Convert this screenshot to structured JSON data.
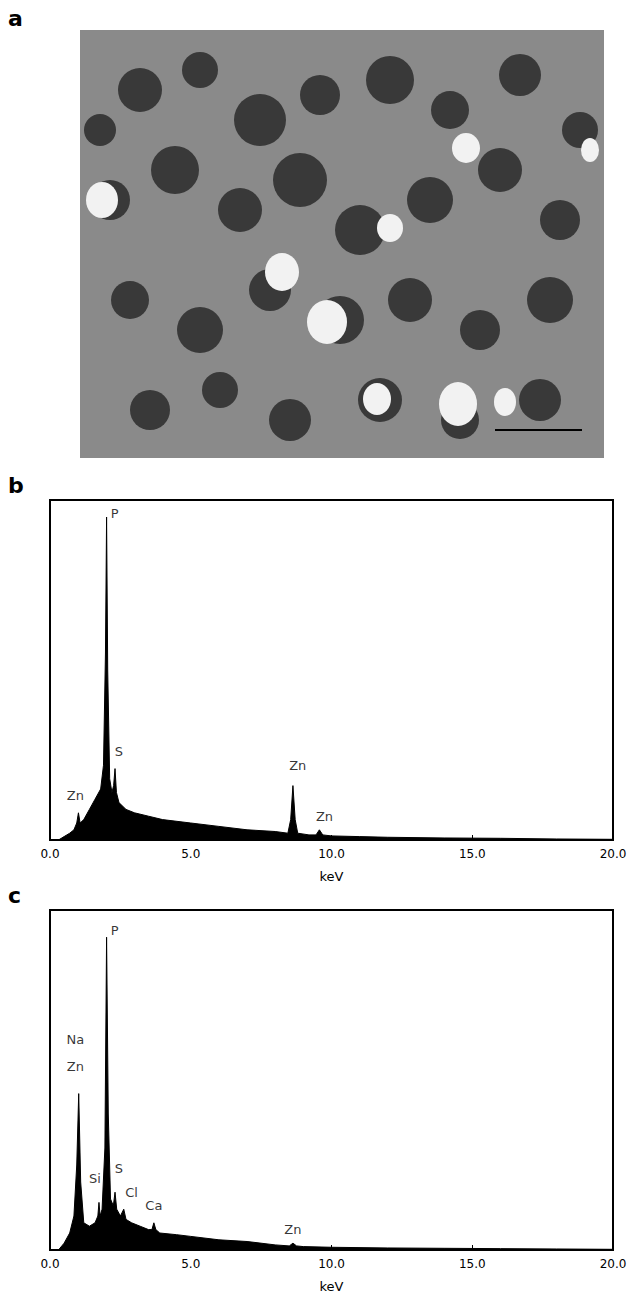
{
  "micrograph": {
    "label": "a"
  },
  "chart_data": [
    {
      "panel": "b",
      "type": "area",
      "color": "#000000",
      "x_label": "keV",
      "x": [
        0.0,
        0.3,
        0.5,
        0.7,
        0.85,
        0.95,
        1.01,
        1.07,
        1.2,
        1.4,
        1.6,
        1.8,
        1.9,
        1.97,
        2.01,
        2.05,
        2.12,
        2.2,
        2.26,
        2.31,
        2.36,
        2.45,
        2.7,
        3.0,
        3.5,
        4.0,
        5.0,
        6.0,
        7.0,
        8.0,
        8.45,
        8.55,
        8.63,
        8.71,
        8.8,
        9.2,
        9.45,
        9.57,
        9.69,
        10.0,
        11.0,
        12.0,
        14.0,
        16.0,
        18.0,
        20.0
      ],
      "values": [
        0,
        0,
        1,
        2,
        3,
        5,
        8,
        5,
        6,
        9,
        12,
        15,
        22,
        55,
        95,
        50,
        18,
        14,
        16,
        21,
        14,
        11,
        9,
        8,
        7,
        6,
        5,
        4,
        3,
        2.5,
        2,
        6,
        16,
        6,
        2,
        1.5,
        1.5,
        3,
        1.5,
        1.2,
        1,
        0.8,
        0.6,
        0.5,
        0.3,
        0.2
      ],
      "xlim": [
        0,
        20
      ],
      "xticks": [
        {
          "value": 0,
          "label": "0.0"
        },
        {
          "value": 5,
          "label": "5.0"
        },
        {
          "value": 10,
          "label": "10.0"
        },
        {
          "value": 15,
          "label": "15.0"
        },
        {
          "value": 20,
          "label": "20.0"
        }
      ],
      "ylim": [
        0,
        100
      ],
      "tick_labels": "x",
      "grid": false,
      "annotations": [
        {
          "text": "P",
          "x": 2.3,
          "y": 96
        },
        {
          "text": "S",
          "x": 2.45,
          "y": 26
        },
        {
          "text": "Zn",
          "x": 0.9,
          "y": 13
        },
        {
          "text": "Zn",
          "x": 8.8,
          "y": 22
        },
        {
          "text": "Zn",
          "x": 9.75,
          "y": 7
        }
      ]
    },
    {
      "panel": "c",
      "type": "area",
      "color": "#000000",
      "x_label": "keV",
      "x": [
        0.0,
        0.3,
        0.5,
        0.7,
        0.85,
        0.95,
        1.02,
        1.09,
        1.2,
        1.4,
        1.6,
        1.7,
        1.74,
        1.78,
        1.85,
        1.95,
        2.01,
        2.07,
        2.15,
        2.25,
        2.31,
        2.37,
        2.5,
        2.62,
        2.7,
        2.9,
        3.2,
        3.5,
        3.62,
        3.69,
        3.76,
        3.9,
        4.5,
        5.0,
        6.0,
        7.0,
        8.0,
        8.5,
        8.63,
        8.76,
        9.0,
        10.0,
        12.0,
        14.0,
        16.0,
        18.0,
        20.0
      ],
      "values": [
        0,
        0,
        2,
        5,
        10,
        25,
        46,
        20,
        8,
        7,
        8,
        10,
        14,
        10,
        12,
        30,
        92,
        40,
        15,
        13,
        17,
        12,
        10,
        12,
        9,
        8,
        7,
        6,
        6,
        8,
        6,
        5,
        4.5,
        4,
        3,
        2.5,
        1.5,
        1.2,
        2,
        1.2,
        1,
        0.8,
        0.6,
        0.5,
        0.4,
        0.3,
        0.2
      ],
      "xlim": [
        0,
        20
      ],
      "xticks": [
        {
          "value": 0,
          "label": "0.0"
        },
        {
          "value": 5,
          "label": "5.0"
        },
        {
          "value": 10,
          "label": "10.0"
        },
        {
          "value": 15,
          "label": "15.0"
        },
        {
          "value": 20,
          "label": "20.0"
        }
      ],
      "ylim": [
        0,
        100
      ],
      "tick_labels": "x",
      "grid": false,
      "annotations": [
        {
          "text": "P",
          "x": 2.3,
          "y": 94
        },
        {
          "text": "Na",
          "x": 0.9,
          "y": 62
        },
        {
          "text": "Zn",
          "x": 0.9,
          "y": 54
        },
        {
          "text": "Si",
          "x": 1.6,
          "y": 21
        },
        {
          "text": "S",
          "x": 2.45,
          "y": 24
        },
        {
          "text": "Cl",
          "x": 2.9,
          "y": 17
        },
        {
          "text": "Ca",
          "x": 3.69,
          "y": 13
        },
        {
          "text": "Zn",
          "x": 8.63,
          "y": 6
        }
      ]
    }
  ]
}
